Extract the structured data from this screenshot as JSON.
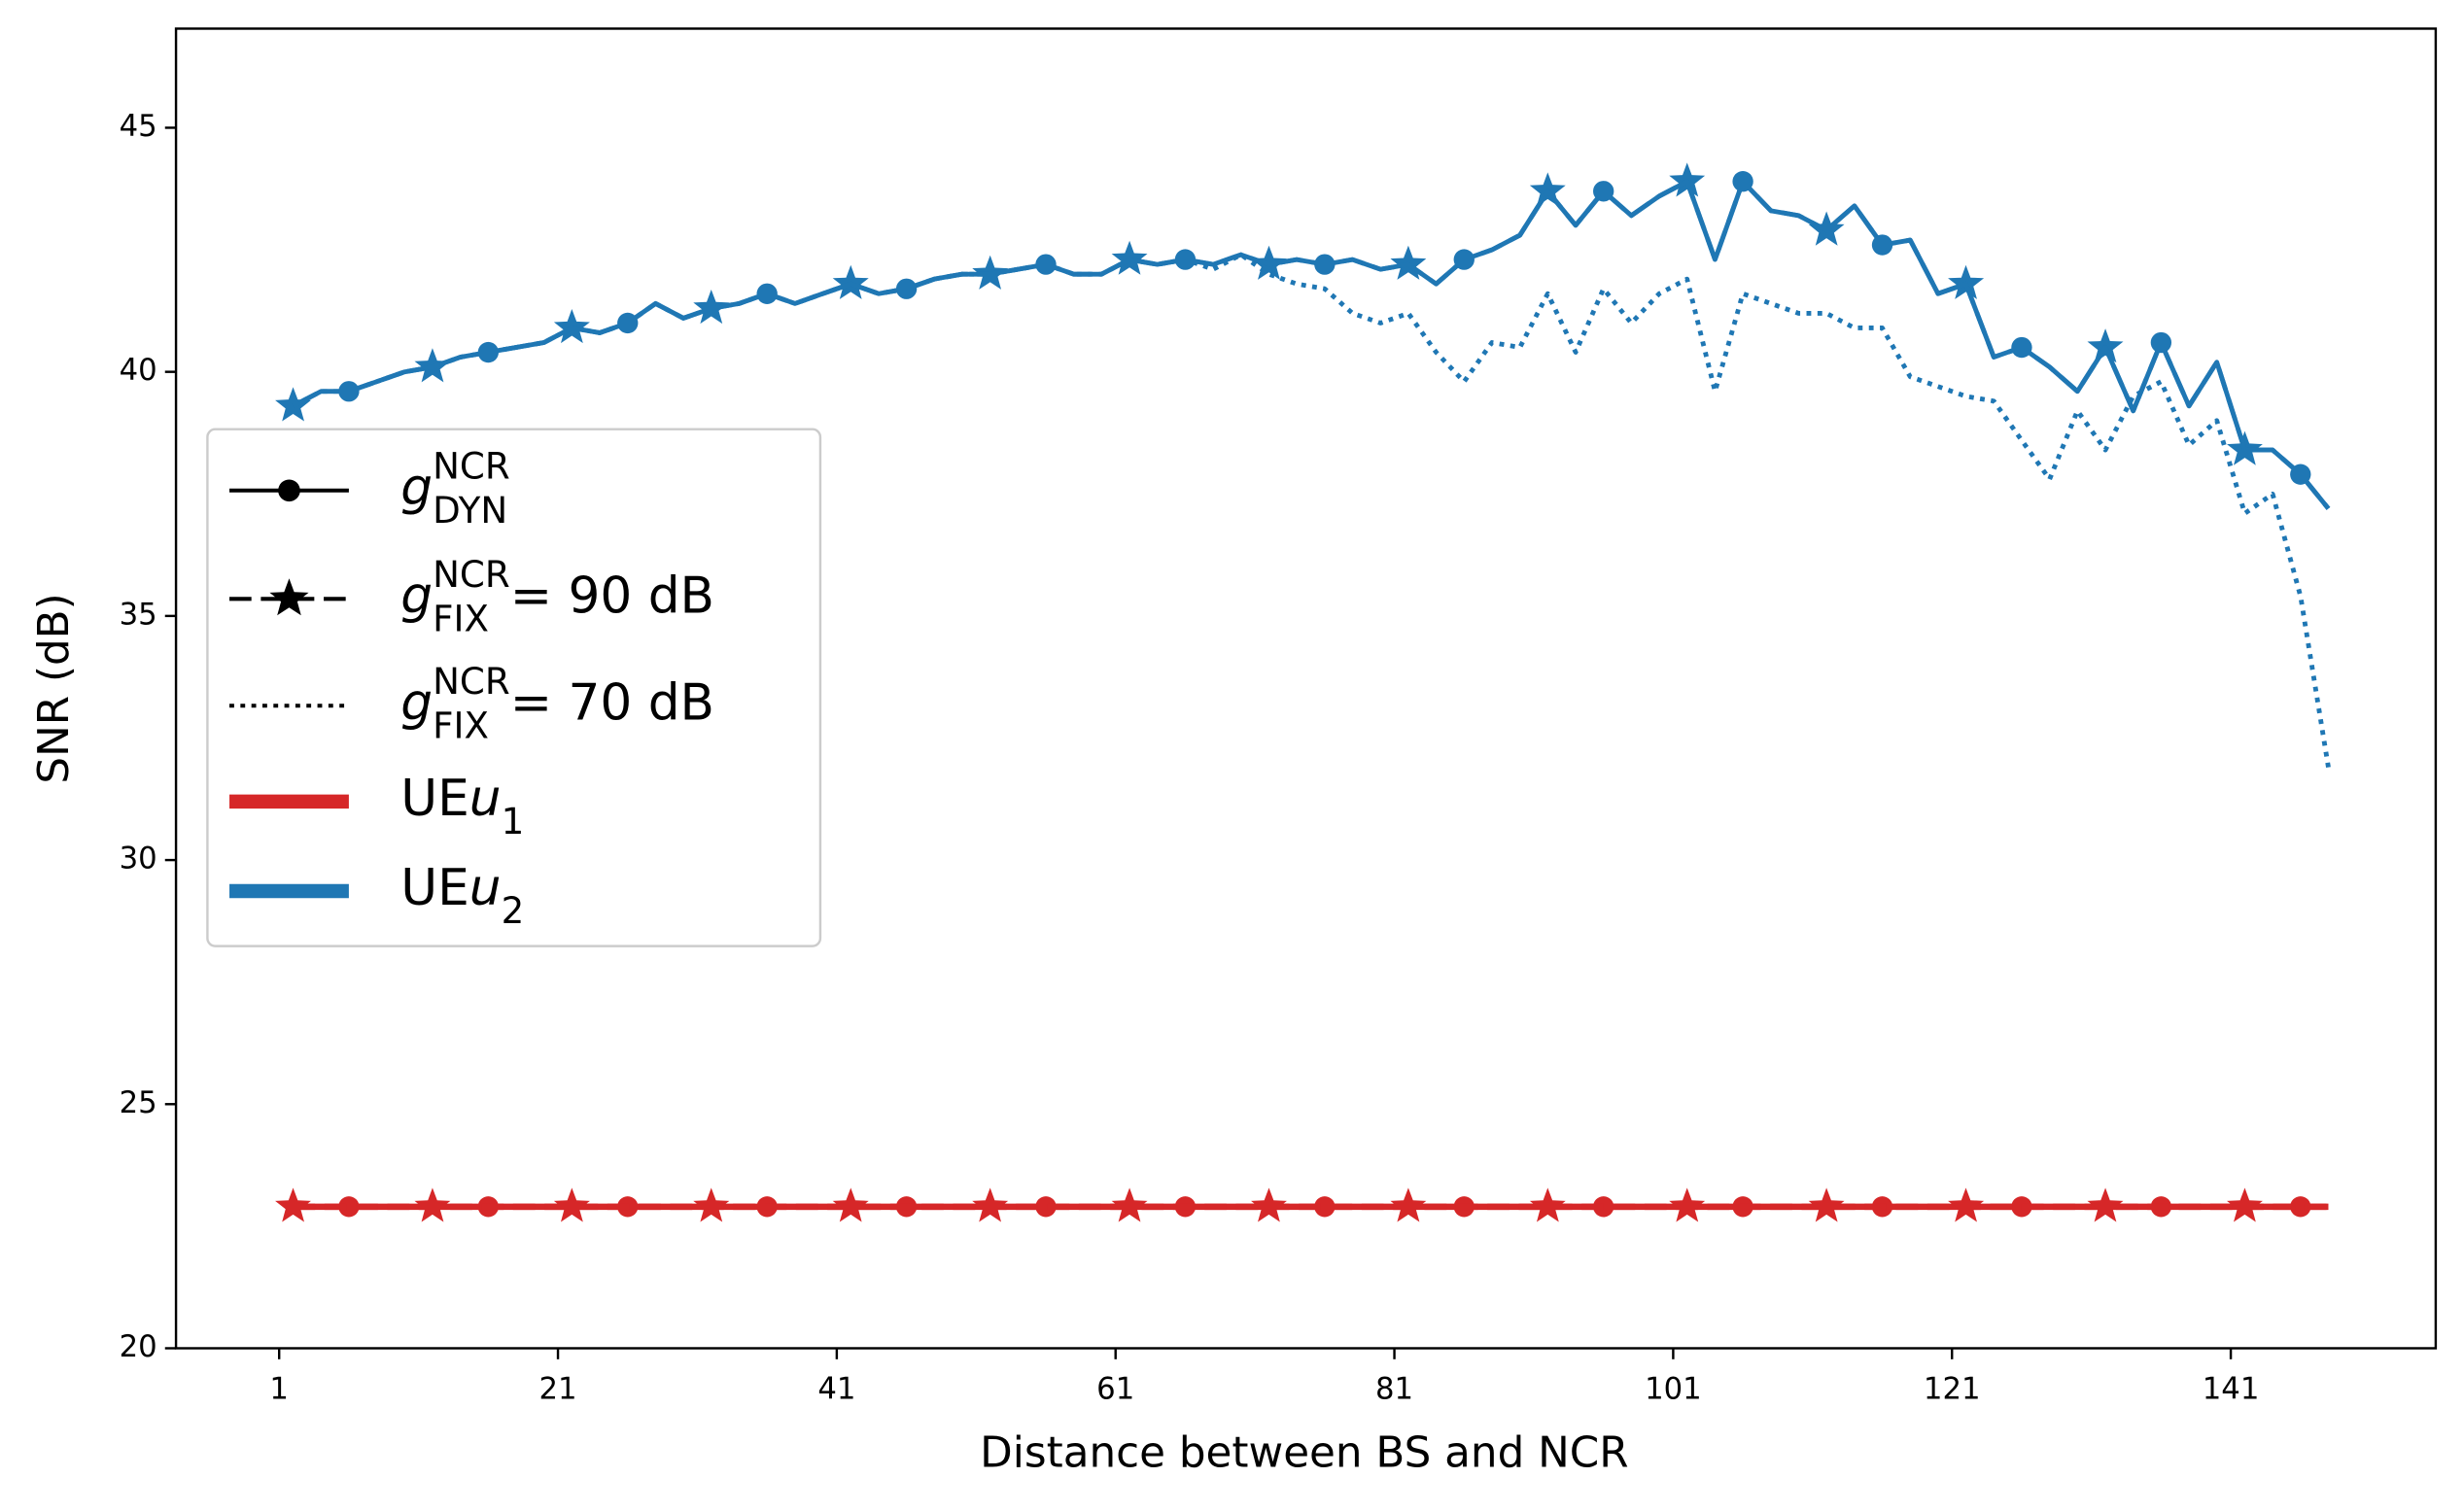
{
  "chart_data": {
    "type": "line",
    "xlabel": "Distance between BS and NCR",
    "ylabel": "SNR (dB)",
    "xlim": [
      -6.4,
      155.7
    ],
    "ylim": [
      20,
      47.03
    ],
    "xticks": [
      1,
      21,
      41,
      61,
      81,
      101,
      121,
      141
    ],
    "yticks": [
      20,
      25,
      30,
      35,
      40,
      45
    ],
    "x": [
      2,
      4,
      6,
      8,
      10,
      12,
      14,
      16,
      18,
      20,
      22,
      24,
      26,
      28,
      30,
      32,
      34,
      36,
      38,
      40,
      42,
      44,
      46,
      48,
      50,
      52,
      54,
      56,
      58,
      60,
      62,
      64,
      66,
      68,
      70,
      72,
      74,
      76,
      78,
      80,
      82,
      84,
      86,
      88,
      90,
      92,
      94,
      96,
      98,
      100,
      102,
      104,
      106,
      108,
      110,
      112,
      114,
      116,
      118,
      120,
      122,
      124,
      126,
      128,
      130,
      132,
      134,
      136,
      138,
      140,
      142,
      144,
      146,
      148
    ],
    "series": [
      {
        "color": "#d62728",
        "linestyle": "solid",
        "linewidth": 4,
        "marker": "o",
        "markevery": [
          2,
          5
        ],
        "values": [
          22.9,
          22.9,
          22.9,
          22.9,
          22.9,
          22.9,
          22.9,
          22.9,
          22.9,
          22.9,
          22.9,
          22.9,
          22.9,
          22.9,
          22.9,
          22.9,
          22.9,
          22.9,
          22.9,
          22.9,
          22.9,
          22.9,
          22.9,
          22.9,
          22.9,
          22.9,
          22.9,
          22.9,
          22.9,
          22.9,
          22.9,
          22.9,
          22.9,
          22.9,
          22.9,
          22.9,
          22.9,
          22.9,
          22.9,
          22.9,
          22.9,
          22.9,
          22.9,
          22.9,
          22.9,
          22.9,
          22.9,
          22.9,
          22.9,
          22.9,
          22.9,
          22.9,
          22.9,
          22.9,
          22.9,
          22.9,
          22.9,
          22.9,
          22.9,
          22.9,
          22.9,
          22.9,
          22.9,
          22.9,
          22.9,
          22.9,
          22.9,
          22.9,
          22.9,
          22.9,
          22.9,
          22.9,
          22.9,
          22.9
        ]
      },
      {
        "color": "#d62728",
        "linestyle": "dashed",
        "linewidth": 4,
        "marker": "*",
        "markevery": [
          0,
          5
        ],
        "values": [
          22.9,
          22.9,
          22.9,
          22.9,
          22.9,
          22.9,
          22.9,
          22.9,
          22.9,
          22.9,
          22.9,
          22.9,
          22.9,
          22.9,
          22.9,
          22.9,
          22.9,
          22.9,
          22.9,
          22.9,
          22.9,
          22.9,
          22.9,
          22.9,
          22.9,
          22.9,
          22.9,
          22.9,
          22.9,
          22.9,
          22.9,
          22.9,
          22.9,
          22.9,
          22.9,
          22.9,
          22.9,
          22.9,
          22.9,
          22.9,
          22.9,
          22.9,
          22.9,
          22.9,
          22.9,
          22.9,
          22.9,
          22.9,
          22.9,
          22.9,
          22.9,
          22.9,
          22.9,
          22.9,
          22.9,
          22.9,
          22.9,
          22.9,
          22.9,
          22.9,
          22.9,
          22.9,
          22.9,
          22.9,
          22.9,
          22.9,
          22.9,
          22.9,
          22.9,
          22.9,
          22.9,
          22.9,
          22.9,
          22.9
        ]
      },
      {
        "color": "#1f77b4",
        "linestyle": "dotted",
        "linewidth": 3,
        "marker": "none",
        "markevery": [
          0,
          5
        ],
        "values": [
          39.3,
          39.6,
          39.6,
          39.8,
          40.0,
          40.1,
          40.3,
          40.4,
          40.5,
          40.6,
          40.9,
          40.8,
          41.0,
          41.4,
          41.1,
          41.3,
          41.4,
          41.6,
          41.4,
          41.6,
          41.8,
          41.6,
          41.7,
          41.9,
          42.0,
          42.0,
          42.1,
          42.2,
          42.0,
          42.0,
          42.3,
          42.2,
          42.3,
          42.1,
          42.4,
          42.0,
          41.8,
          41.7,
          41.2,
          41.0,
          41.2,
          40.4,
          39.8,
          40.6,
          40.5,
          41.6,
          40.4,
          41.7,
          41.0,
          41.6,
          41.9,
          39.6,
          41.6,
          41.4,
          41.2,
          41.2,
          40.9,
          40.9,
          39.9,
          39.7,
          39.5,
          39.4,
          38.6,
          37.8,
          39.2,
          38.4,
          39.5,
          39.8,
          38.5,
          39.0,
          37.1,
          37.5,
          35.4,
          31.9
        ]
      },
      {
        "color": "#1f77b4",
        "linestyle": "dashed",
        "linewidth": 3,
        "marker": "*",
        "markevery": [
          0,
          5
        ],
        "values": [
          39.3,
          39.6,
          39.6,
          39.8,
          40.0,
          40.1,
          40.3,
          40.4,
          40.5,
          40.6,
          40.9,
          40.8,
          41.0,
          41.4,
          41.1,
          41.3,
          41.4,
          41.6,
          41.4,
          41.6,
          41.8,
          41.6,
          41.7,
          41.9,
          42.0,
          42.0,
          42.1,
          42.2,
          42.0,
          42.0,
          42.3,
          42.2,
          42.3,
          42.2,
          42.4,
          42.2,
          42.3,
          42.2,
          42.3,
          42.1,
          42.2,
          41.8,
          42.3,
          42.5,
          42.8,
          43.7,
          43.0,
          43.7,
          43.2,
          43.6,
          43.9,
          42.3,
          43.9,
          43.3,
          43.2,
          42.9,
          43.4,
          42.6,
          42.7,
          41.6,
          41.8,
          40.3,
          40.5,
          40.1,
          39.6,
          40.5,
          39.2,
          40.6,
          39.3,
          40.2,
          38.4,
          38.4,
          37.9,
          37.2
        ]
      },
      {
        "color": "#1f77b4",
        "linestyle": "solid",
        "linewidth": 3,
        "marker": "o",
        "markevery": [
          2,
          5
        ],
        "values": [
          39.3,
          39.6,
          39.6,
          39.8,
          40.0,
          40.1,
          40.3,
          40.4,
          40.5,
          40.6,
          40.9,
          40.8,
          41.0,
          41.4,
          41.1,
          41.3,
          41.4,
          41.6,
          41.4,
          41.6,
          41.8,
          41.6,
          41.7,
          41.9,
          42.0,
          42.0,
          42.1,
          42.2,
          42.0,
          42.0,
          42.3,
          42.2,
          42.3,
          42.2,
          42.4,
          42.2,
          42.3,
          42.2,
          42.3,
          42.1,
          42.2,
          41.8,
          42.3,
          42.5,
          42.8,
          43.7,
          43.0,
          43.7,
          43.2,
          43.6,
          43.9,
          42.3,
          43.9,
          43.3,
          43.2,
          42.9,
          43.4,
          42.6,
          42.7,
          41.6,
          41.8,
          40.3,
          40.5,
          40.1,
          39.6,
          40.5,
          39.2,
          40.6,
          39.3,
          40.2,
          38.4,
          38.4,
          37.9,
          37.2
        ]
      }
    ],
    "legend": {
      "position": "center left",
      "items": [
        {
          "color": "#000000",
          "linestyle": "solid",
          "marker": "o",
          "symbol": "g",
          "sup": "NCR",
          "sub": "DYN"
        },
        {
          "color": "#000000",
          "linestyle": "dashed",
          "marker": "*",
          "symbol": "g",
          "sup": "NCR",
          "sub": "FIX",
          "suffix": " = 90 dB"
        },
        {
          "color": "#000000",
          "linestyle": "dotted",
          "marker": "none",
          "symbol": "g",
          "sup": "NCR",
          "sub": "FIX",
          "suffix": " = 70 dB"
        },
        {
          "color": "#d62728",
          "linestyle": "thick",
          "marker": "none",
          "prefix": "UE ",
          "symbol": "u",
          "sub": "1"
        },
        {
          "color": "#1f77b4",
          "linestyle": "thick",
          "marker": "none",
          "prefix": "UE ",
          "symbol": "u",
          "sub": "2"
        }
      ]
    }
  }
}
